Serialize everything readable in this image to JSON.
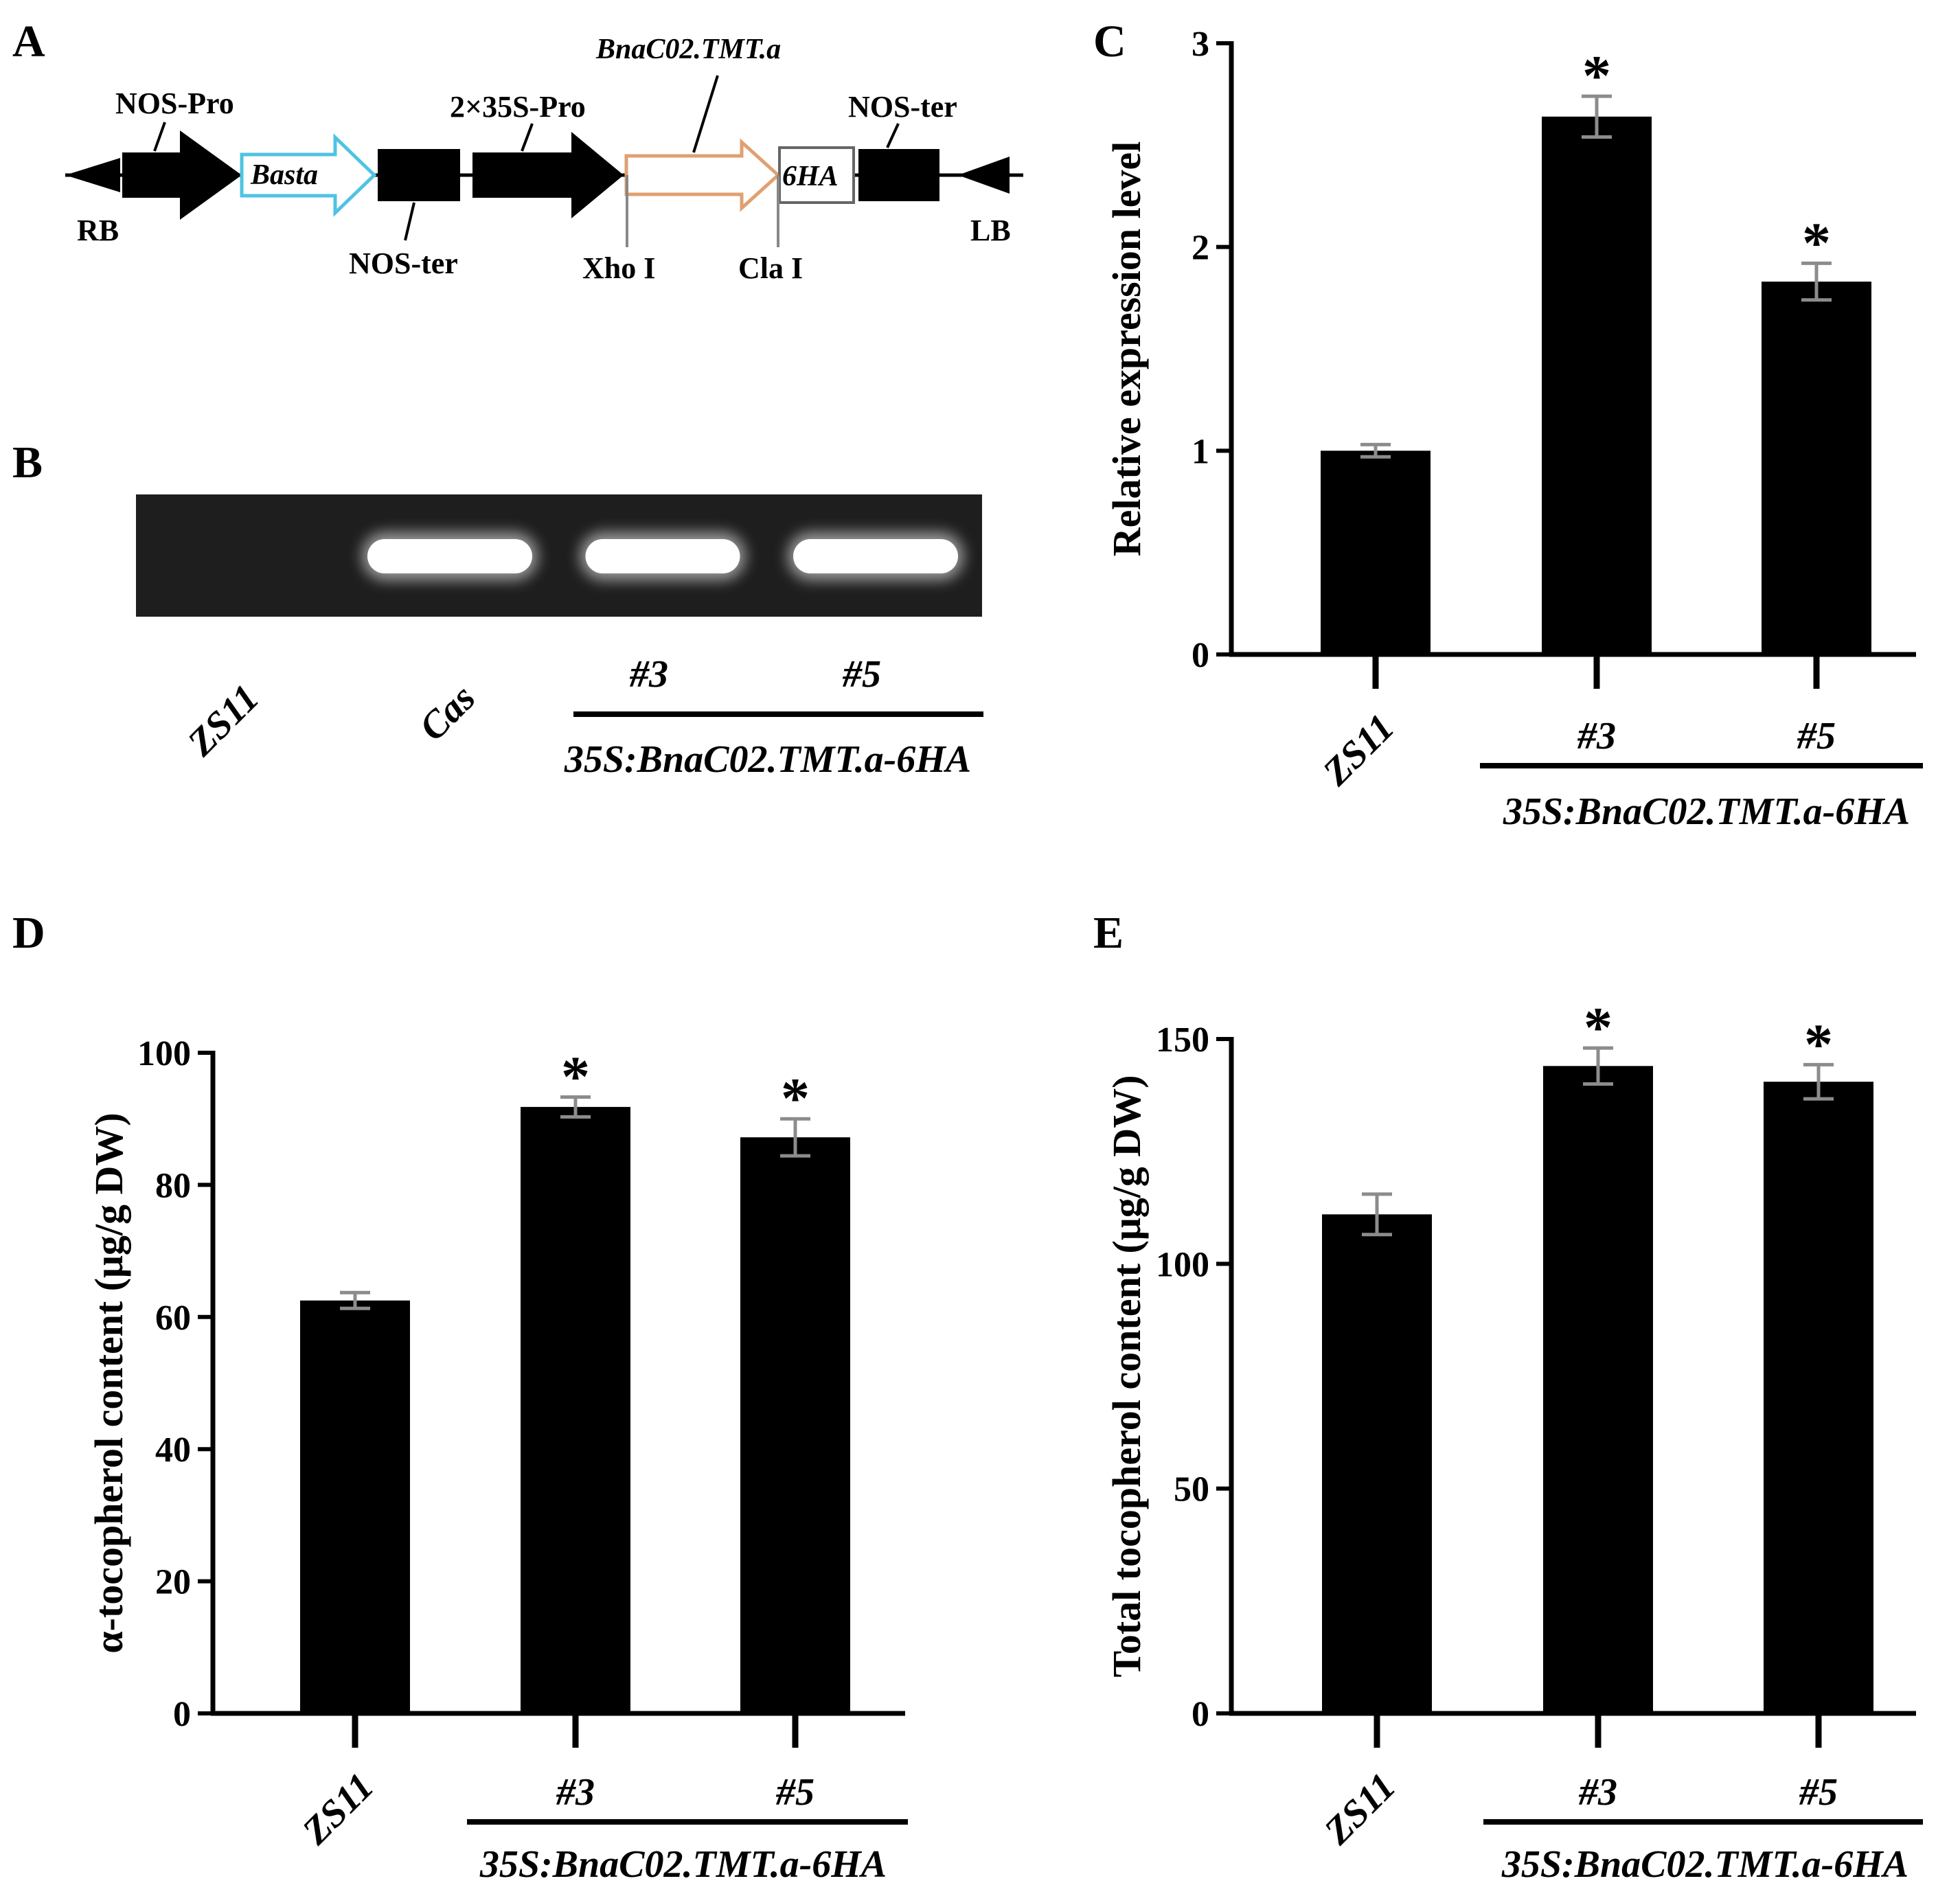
{
  "panel_labels": {
    "A": "A",
    "B": "B",
    "C": "C",
    "D": "D",
    "E": "E"
  },
  "diagram": {
    "labels": {
      "nos_pro": "NOS-Pro",
      "basta": "Basta",
      "pro_35s": "2×35S-Pro",
      "gene": "BnaC02.TMT.a",
      "tag": "6HA",
      "nos_ter_top": "NOS-ter",
      "nos_ter_bottom": "NOS-ter",
      "rb": "RB",
      "lb": "LB",
      "xho": "Xho I",
      "cla": "Cla I"
    }
  },
  "gel": {
    "lanes": [
      "ZS11",
      "Cas",
      "#3",
      "#5"
    ],
    "bands_present": [
      false,
      true,
      true,
      true
    ],
    "construct": "35S:BnaC02.TMT.a-6HA"
  },
  "chart_data": [
    {
      "id": "C",
      "type": "bar",
      "categories": [
        "ZS11",
        "#3",
        "#5"
      ],
      "values": [
        1.0,
        2.64,
        1.83
      ],
      "errors": [
        0.03,
        0.1,
        0.09
      ],
      "significant": [
        false,
        true,
        true
      ],
      "star": "*",
      "ylabel": "Relative expression level",
      "ylim": [
        0,
        3
      ],
      "yticks": [
        "0",
        "1",
        "2",
        "3"
      ],
      "construct": "35S:BnaC02.TMT.a-6HA",
      "bar_color": "#000000",
      "error_color": "#8c8c8c"
    },
    {
      "id": "D",
      "type": "bar",
      "categories": [
        "ZS11",
        "#3",
        "#5"
      ],
      "values": [
        62.5,
        91.8,
        87.2
      ],
      "errors": [
        1.2,
        1.5,
        2.8
      ],
      "significant": [
        false,
        true,
        true
      ],
      "star": "*",
      "ylabel": "α-tocopherol content (μg/g DW)",
      "ylim": [
        0,
        100
      ],
      "yticks": [
        "0",
        "20",
        "40",
        "60",
        "80",
        "100"
      ],
      "construct": "35S:BnaC02.TMT.a-6HA",
      "bar_color": "#000000",
      "error_color": "#8c8c8c"
    },
    {
      "id": "E",
      "type": "bar",
      "categories": [
        "ZS11",
        "#3",
        "#5"
      ],
      "values": [
        111.0,
        144.0,
        140.5
      ],
      "errors": [
        4.5,
        4.0,
        3.8
      ],
      "significant": [
        false,
        true,
        true
      ],
      "star": "*",
      "ylabel": "Total tocopherol content (μg/g DW)",
      "ylim": [
        0,
        150
      ],
      "yticks": [
        "0",
        "50",
        "100",
        "150"
      ],
      "construct": "35S:BnaC02.TMT.a-6HA",
      "bar_color": "#000000",
      "error_color": "#8c8c8c"
    }
  ]
}
